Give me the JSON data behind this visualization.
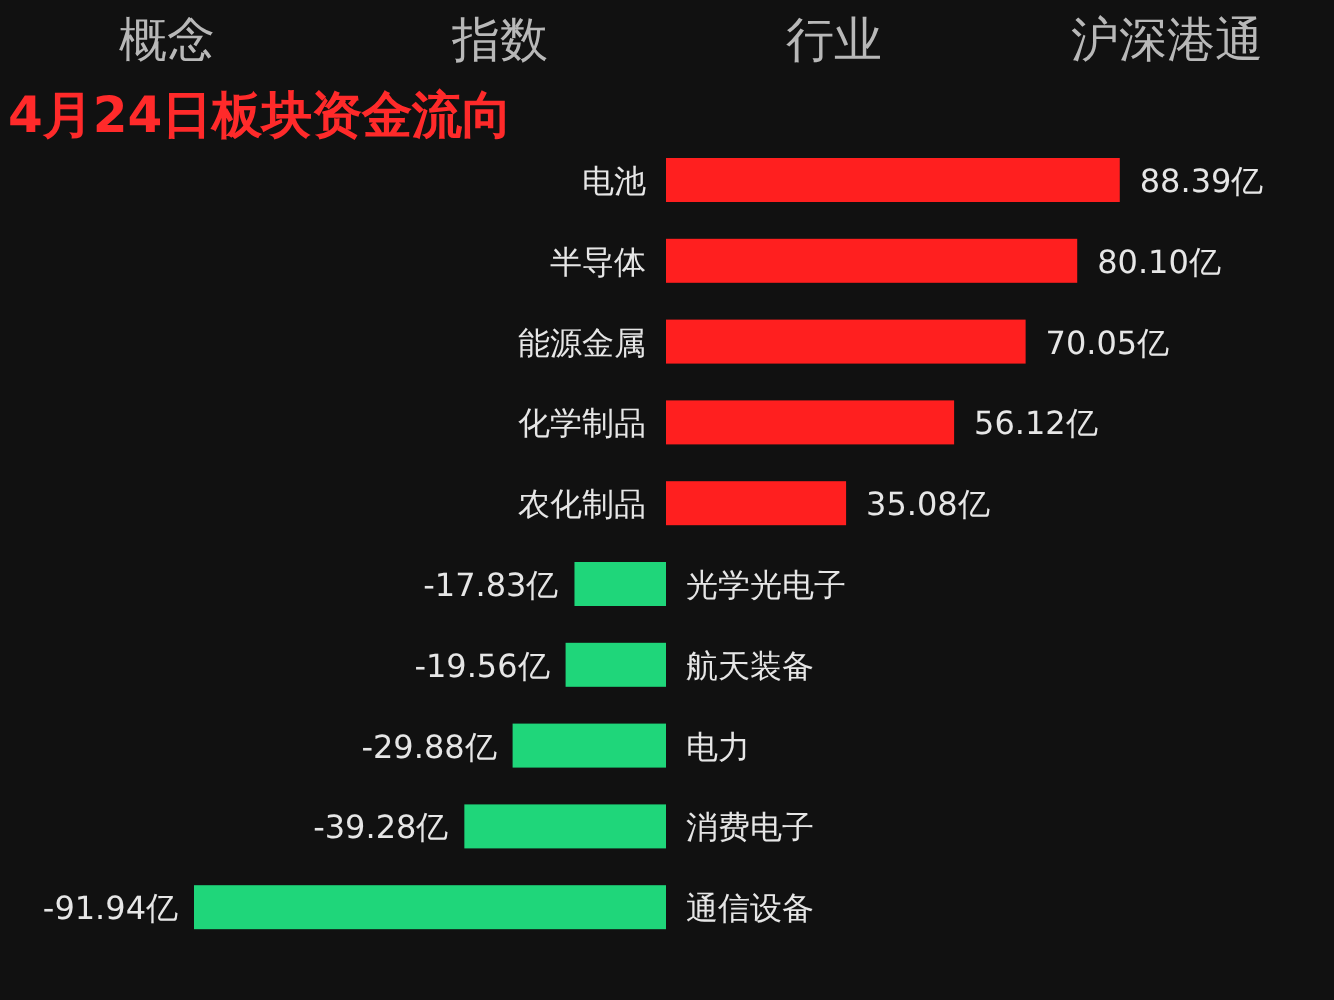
{
  "chart_data": {
    "type": "bar",
    "orientation": "horizontal",
    "title": "4月24日板块资金流向",
    "annotations": [
      "概念",
      "指数",
      "行业",
      "沪深港通"
    ],
    "categories": [
      "电池",
      "半导体",
      "能源金属",
      "化学制品",
      "农化制品",
      "光学光电子",
      "航天装备",
      "电力",
      "消费电子",
      "通信设备"
    ],
    "values": [
      88.39,
      80.1,
      70.05,
      56.12,
      35.08,
      -17.83,
      -19.56,
      -29.88,
      -39.28,
      -91.94
    ],
    "colors": [
      "#ff1f1f",
      "#ff1f1f",
      "#ff1f1f",
      "#ff1f1f",
      "#ff1f1f",
      "#1fd67a",
      "#1fd67a",
      "#1fd67a",
      "#1fd67a",
      "#1fd67a"
    ],
    "value_labels": [
      "88.39亿",
      "80.10亿",
      "70.05亿",
      "56.12亿",
      "35.08亿",
      "-17.83亿",
      "-19.56亿",
      "-29.88亿",
      "-39.28亿",
      "-91.94亿"
    ]
  }
}
